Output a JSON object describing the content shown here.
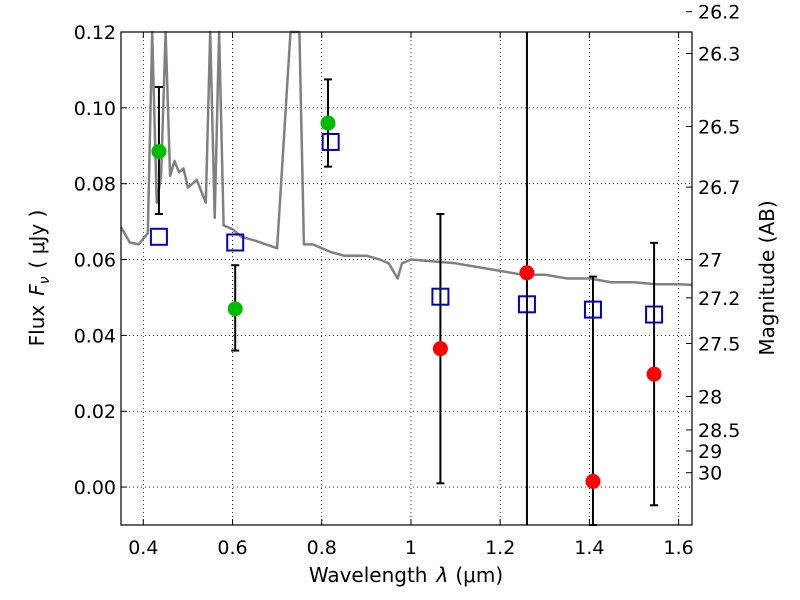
{
  "chart_data": {
    "type": "scatter",
    "xlabel": "Wavelength",
    "xlabel_symbol": "λ",
    "xlabel_unit": "(μm)",
    "ylabel": "Flux",
    "ylabel_symbol": "F",
    "ylabel_symbol_sub": "ν",
    "ylabel_unit": "( μJy )",
    "ylabel_right": "Magnitude (AB)",
    "xlim": [
      0.35,
      1.63
    ],
    "ylim": [
      -0.01,
      0.12
    ],
    "grid": true,
    "x_ticks": [
      {
        "value": 0.4,
        "label": "0.4"
      },
      {
        "value": 0.6,
        "label": "0.6"
      },
      {
        "value": 0.8,
        "label": "0.8"
      },
      {
        "value": 1.0,
        "label": "1"
      },
      {
        "value": 1.2,
        "label": "1.2"
      },
      {
        "value": 1.4,
        "label": "1.4"
      },
      {
        "value": 1.6,
        "label": "1.6"
      }
    ],
    "y_ticks": [
      {
        "value": 0.0,
        "label": "0.00"
      },
      {
        "value": 0.02,
        "label": "0.02"
      },
      {
        "value": 0.04,
        "label": "0.04"
      },
      {
        "value": 0.06,
        "label": "0.06"
      },
      {
        "value": 0.08,
        "label": "0.08"
      },
      {
        "value": 0.1,
        "label": "0.10"
      },
      {
        "value": 0.12,
        "label": "0.12"
      }
    ],
    "mag_ticks": [
      "26.2",
      "26.3",
      "26.5",
      "26.7",
      "27",
      "27.2",
      "27.5",
      "28",
      "28.5",
      "29",
      "30"
    ],
    "model_spectrum": {
      "color": "#808080",
      "x": [
        0.35,
        0.37,
        0.39,
        0.41,
        0.42,
        0.43,
        0.44,
        0.45,
        0.46,
        0.47,
        0.48,
        0.49,
        0.5,
        0.52,
        0.54,
        0.55,
        0.56,
        0.57,
        0.58,
        0.6,
        0.62,
        0.65,
        0.7,
        0.73,
        0.75,
        0.76,
        0.78,
        0.8,
        0.82,
        0.85,
        0.9,
        0.93,
        0.95,
        0.97,
        0.98,
        1.0,
        1.05,
        1.1,
        1.15,
        1.2,
        1.25,
        1.3,
        1.35,
        1.4,
        1.45,
        1.5,
        1.55,
        1.6,
        1.63
      ],
      "y": [
        0.0685,
        0.0645,
        0.064,
        0.067,
        0.12,
        0.075,
        0.082,
        0.12,
        0.082,
        0.086,
        0.083,
        0.084,
        0.079,
        0.081,
        0.075,
        0.12,
        0.071,
        0.12,
        0.069,
        0.068,
        0.066,
        0.065,
        0.063,
        0.12,
        0.12,
        0.064,
        0.064,
        0.063,
        0.062,
        0.061,
        0.061,
        0.06,
        0.059,
        0.055,
        0.059,
        0.06,
        0.0595,
        0.059,
        0.058,
        0.057,
        0.056,
        0.056,
        0.055,
        0.055,
        0.054,
        0.054,
        0.0535,
        0.0535,
        0.0533
      ]
    },
    "series": [
      {
        "name": "observed-green",
        "marker": "circle",
        "color": "#00bb00",
        "points": [
          {
            "x": 0.435,
            "y": 0.0885,
            "err_low": 0.0165,
            "err_high": 0.017
          },
          {
            "x": 0.606,
            "y": 0.047,
            "err_low": 0.011,
            "err_high": 0.0115
          },
          {
            "x": 0.814,
            "y": 0.096,
            "err_low": 0.0115,
            "err_high": 0.0115
          }
        ]
      },
      {
        "name": "observed-red",
        "marker": "circle",
        "color": "#ff0000",
        "points": [
          {
            "x": 1.066,
            "y": 0.0365,
            "err_low": 0.0355,
            "err_high": 0.0355
          },
          {
            "x": 1.26,
            "y": 0.0565,
            "err_low": 0.07,
            "err_high": 0.07
          },
          {
            "x": 1.408,
            "y": 0.0015,
            "err_low": 0.0115,
            "err_high": 0.054
          },
          {
            "x": 1.545,
            "y": 0.0298,
            "err_low": 0.0346,
            "err_high": 0.0346
          }
        ]
      },
      {
        "name": "model-photometry",
        "marker": "square",
        "color": "#0000cc",
        "points": [
          {
            "x": 0.435,
            "y": 0.066
          },
          {
            "x": 0.606,
            "y": 0.0645
          },
          {
            "x": 0.82,
            "y": 0.091
          },
          {
            "x": 1.066,
            "y": 0.0502
          },
          {
            "x": 1.26,
            "y": 0.0482
          },
          {
            "x": 1.408,
            "y": 0.0468
          },
          {
            "x": 1.545,
            "y": 0.0455
          }
        ]
      }
    ]
  }
}
